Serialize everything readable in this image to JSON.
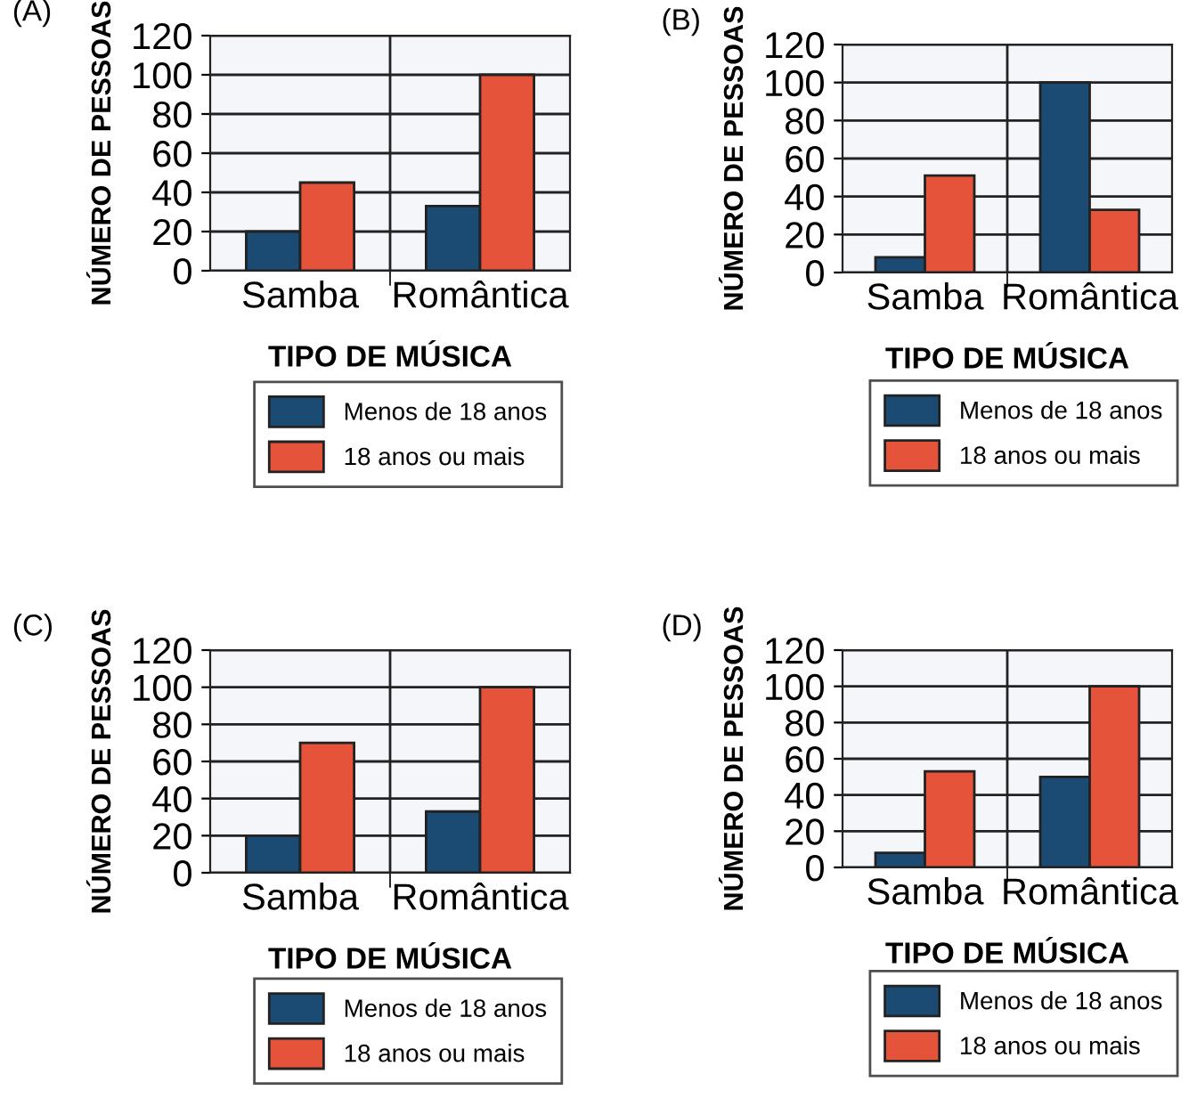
{
  "chart_data": [
    {
      "type": "bar",
      "title": "(A)",
      "xlabel": "TIPO DE MÚSICA",
      "ylabel": "NÚMERO DE PESSOAS",
      "categories": [
        "Samba",
        "Romântica"
      ],
      "series": [
        {
          "name": "Menos de 18 anos",
          "color": "#1b4a72",
          "values": [
            20,
            33
          ]
        },
        {
          "name": "18 anos ou mais",
          "color": "#e5533a",
          "values": [
            45,
            100
          ]
        }
      ],
      "ylim": [
        0,
        120
      ],
      "yticks": [
        0,
        20,
        40,
        60,
        80,
        100,
        120
      ],
      "grid": true,
      "legend": "bottom"
    },
    {
      "type": "bar",
      "title": "(B)",
      "xlabel": "TIPO DE MÚSICA",
      "ylabel": "NÚMERO DE PESSOAS",
      "categories": [
        "Samba",
        "Romântica"
      ],
      "series": [
        {
          "name": "Menos de 18 anos",
          "color": "#1b4a72",
          "values": [
            8,
            100
          ]
        },
        {
          "name": "18 anos ou mais",
          "color": "#e5533a",
          "values": [
            51,
            33
          ]
        }
      ],
      "ylim": [
        0,
        120
      ],
      "yticks": [
        0,
        20,
        40,
        60,
        80,
        100,
        120
      ],
      "grid": true,
      "legend": "bottom"
    },
    {
      "type": "bar",
      "title": "(C)",
      "xlabel": "TIPO DE MÚSICA",
      "ylabel": "NÚMERO DE PESSOAS",
      "categories": [
        "Samba",
        "Romântica"
      ],
      "series": [
        {
          "name": "Menos de 18 anos",
          "color": "#1b4a72",
          "values": [
            20,
            33
          ]
        },
        {
          "name": "18 anos ou mais",
          "color": "#e5533a",
          "values": [
            70,
            100
          ]
        }
      ],
      "ylim": [
        0,
        120
      ],
      "yticks": [
        0,
        20,
        40,
        60,
        80,
        100,
        120
      ],
      "grid": true,
      "legend": "bottom"
    },
    {
      "type": "bar",
      "title": "(D)",
      "xlabel": "TIPO DE MÚSICA",
      "ylabel": "NÚMERO DE PESSOAS",
      "categories": [
        "Samba",
        "Romântica"
      ],
      "series": [
        {
          "name": "Menos de 18 anos",
          "color": "#1b4a72",
          "values": [
            8,
            50
          ]
        },
        {
          "name": "18 anos ou mais",
          "color": "#e5533a",
          "values": [
            53,
            100
          ]
        }
      ],
      "ylim": [
        0,
        120
      ],
      "yticks": [
        0,
        20,
        40,
        60,
        80,
        100,
        120
      ],
      "grid": true,
      "legend": "bottom"
    }
  ]
}
